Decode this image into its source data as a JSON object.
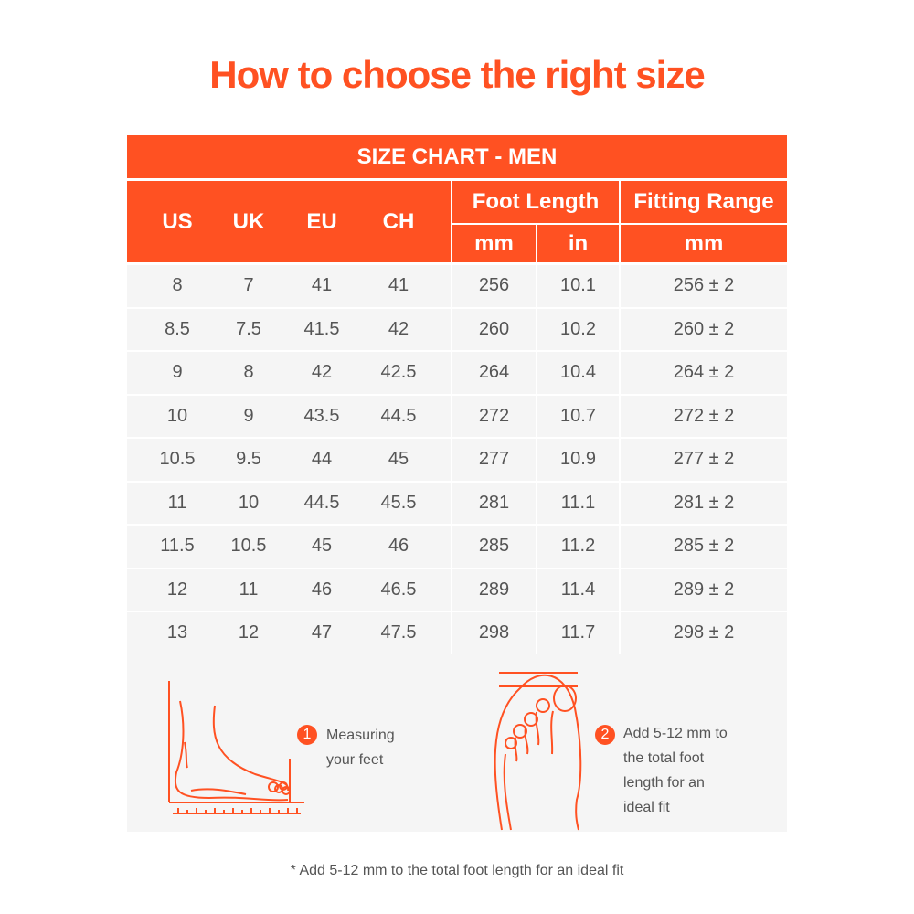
{
  "title": "How to choose the right size",
  "table": {
    "caption": "SIZE CHART - MEN",
    "headers": {
      "us": "US",
      "uk": "UK",
      "eu": "EU",
      "ch": "CH",
      "foot_length": "Foot Length",
      "foot_mm": "mm",
      "foot_in": "in",
      "fitting_range": "Fitting Range",
      "fitting_mm": "mm"
    },
    "rows": [
      [
        "8",
        "7",
        "41",
        "41",
        "256",
        "10.1",
        "256 ± 2"
      ],
      [
        "8.5",
        "7.5",
        "41.5",
        "42",
        "260",
        "10.2",
        "260 ± 2"
      ],
      [
        "9",
        "8",
        "42",
        "42.5",
        "264",
        "10.4",
        "264 ± 2"
      ],
      [
        "10",
        "9",
        "43.5",
        "44.5",
        "272",
        "10.7",
        "272 ± 2"
      ],
      [
        "10.5",
        "9.5",
        "44",
        "45",
        "277",
        "10.9",
        "277 ± 2"
      ],
      [
        "11",
        "10",
        "44.5",
        "45.5",
        "281",
        "11.1",
        "281 ± 2"
      ],
      [
        "11.5",
        "10.5",
        "45",
        "46",
        "285",
        "11.2",
        "285 ± 2"
      ],
      [
        "12",
        "11",
        "46",
        "46.5",
        "289",
        "11.4",
        "289 ± 2"
      ],
      [
        "13",
        "12",
        "47",
        "47.5",
        "298",
        "11.7",
        "298 ± 2"
      ]
    ]
  },
  "steps": [
    {
      "number": "1",
      "lines": [
        "Measuring",
        "your feet"
      ]
    },
    {
      "number": "2",
      "lines": [
        "Add 5-12 mm to",
        "the total foot",
        "length for an",
        "ideal fit"
      ]
    }
  ],
  "footnote": "* Add 5-12 mm to the total foot length for an ideal fit",
  "colors": {
    "accent": "#ff5122",
    "row_bg": "#f5f5f5",
    "text": "#555555"
  }
}
